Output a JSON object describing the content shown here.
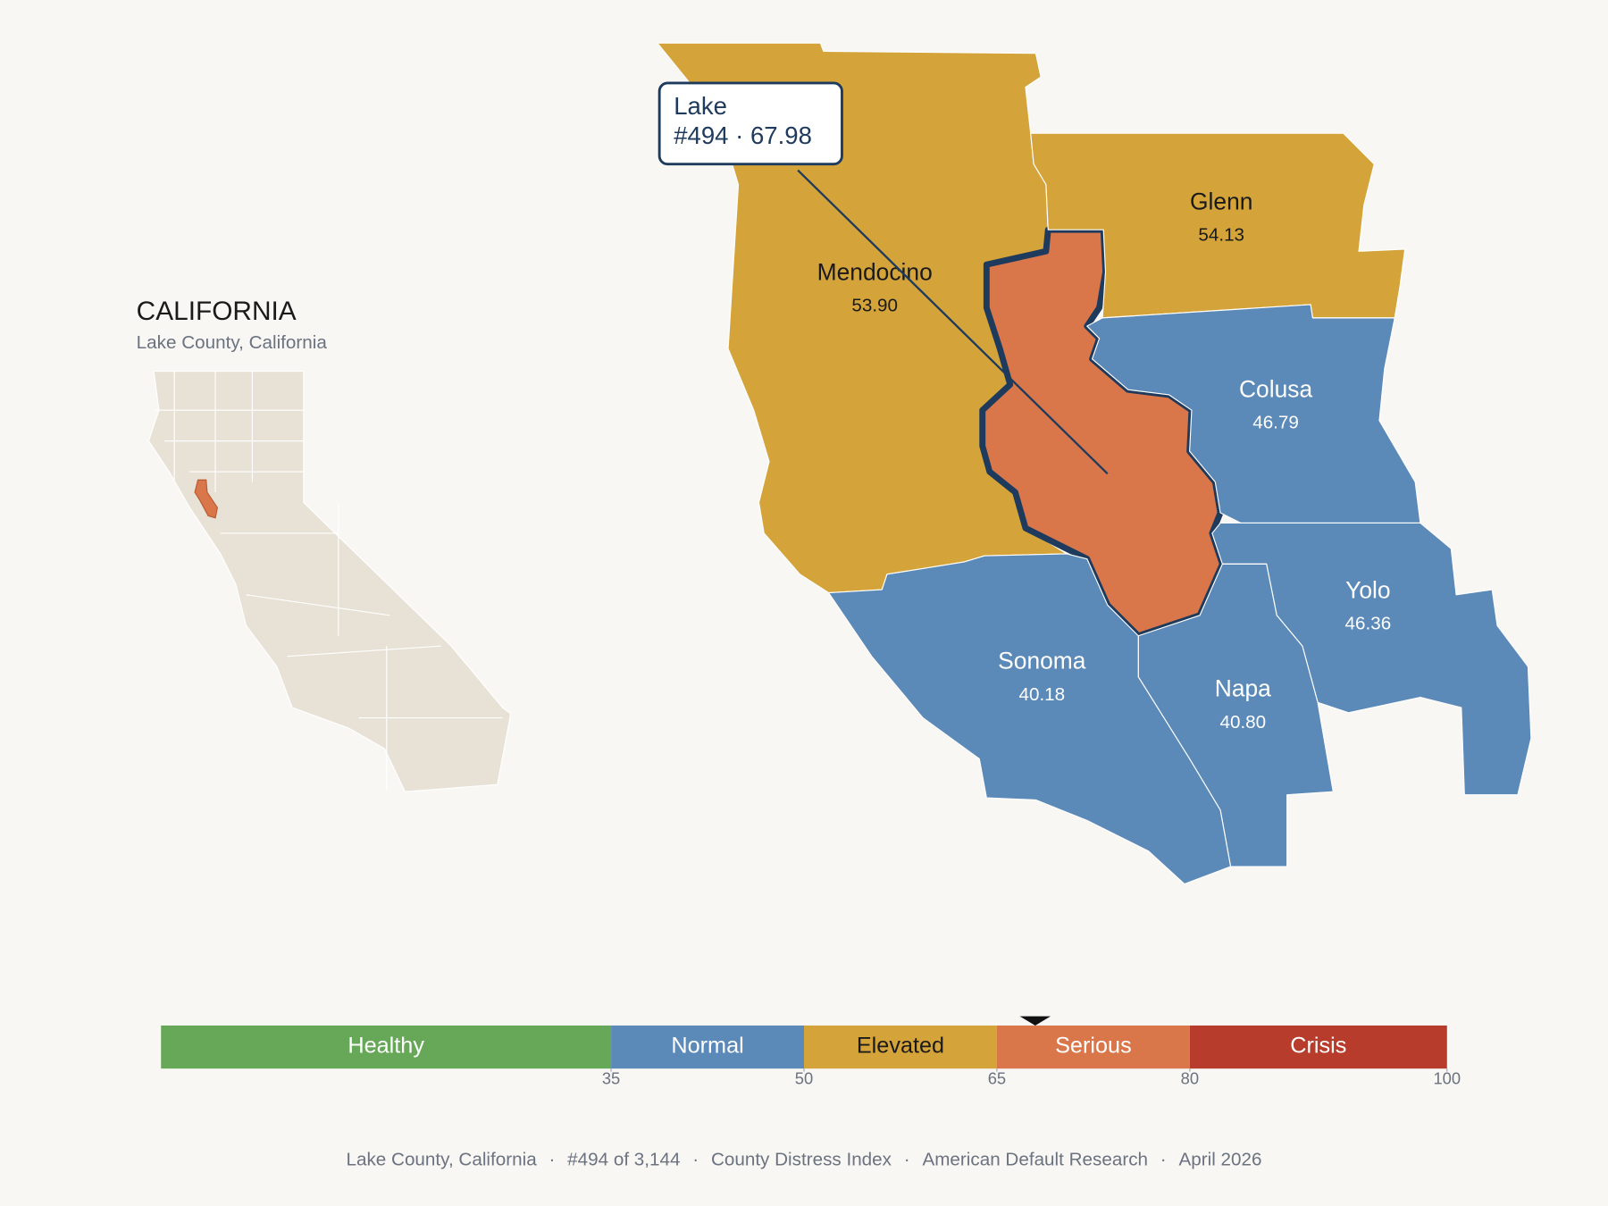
{
  "inset": {
    "title": "CALIFORNIA",
    "subtitle": "Lake County, California"
  },
  "map": {
    "counties": [
      {
        "name": "Mendocino",
        "value": 53.9,
        "value_label": "53.90",
        "color": "#d4a43a"
      },
      {
        "name": "Glenn",
        "value": 54.13,
        "value_label": "54.13",
        "color": "#d4a43a"
      },
      {
        "name": "Colusa",
        "value": 46.79,
        "value_label": "46.79",
        "color": "#5b89b8"
      },
      {
        "name": "Yolo",
        "value": 46.36,
        "value_label": "46.36",
        "color": "#5b89b8"
      },
      {
        "name": "Napa",
        "value": 40.8,
        "value_label": "40.80",
        "color": "#5b89b8"
      },
      {
        "name": "Sonoma",
        "value": 40.18,
        "value_label": "40.18",
        "color": "#5b89b8"
      },
      {
        "name": "Lake",
        "value": 67.98,
        "color": "#d9774a",
        "highlighted": true
      }
    ],
    "tooltip": {
      "name": "Lake",
      "line": "#494 · 67.98"
    }
  },
  "scale": {
    "lim": [
      0,
      100
    ],
    "ticks": [
      35,
      50,
      65,
      80,
      100
    ],
    "bands": [
      {
        "name": "Healthy",
        "from": 0,
        "to": 35,
        "color": "#67a758"
      },
      {
        "name": "Normal",
        "from": 35,
        "to": 50,
        "color": "#5b89b8"
      },
      {
        "name": "Elevated",
        "from": 50,
        "to": 65,
        "color": "#d4a43a"
      },
      {
        "name": "Serious",
        "from": 65,
        "to": 80,
        "color": "#d9774a"
      },
      {
        "name": "Crisis",
        "from": 80,
        "to": 100,
        "color": "#b83c2c"
      }
    ]
  },
  "footer": {
    "items": [
      "Lake County, California",
      "#494 of 3,144",
      "County Distress Index",
      "American Default Research",
      "April 2026"
    ],
    "separator": "·"
  }
}
